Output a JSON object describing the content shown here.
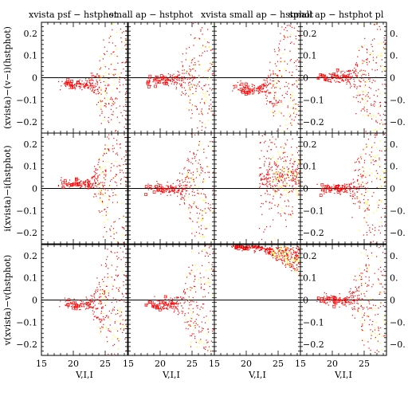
{
  "chart_data": {
    "type": "scatter",
    "layout": "3x4 grid",
    "xlim": [
      15,
      28.5
    ],
    "ylim": [
      -0.25,
      0.25
    ],
    "grid": false,
    "x_ticks": [
      15,
      20,
      25
    ],
    "y_ticks": [
      -0.2,
      -0.1,
      0,
      0.1,
      0.2
    ],
    "y_tick_labels": [
      "−0.2",
      "−0.1",
      "0",
      "0.1",
      "0.2"
    ],
    "right_tick_labels": [
      "−0.2",
      "−0.1",
      "0",
      "0.1",
      "0.2"
    ],
    "right_tick_labels_clipped": [
      "−0.",
      "−0.",
      "0",
      "0.",
      "0."
    ],
    "xlabel": "V,I,I",
    "ylabels": [
      "(xvista)−(v−i)(hstphot)",
      "i(xvista)−i(hstphot)",
      "v(xvista)−v(hstphot)"
    ],
    "column_titles": [
      "xvista psf − hstphot",
      "small ap − hstphot",
      "xvista small ap − hstphot",
      "small ap − hstphot pl"
    ],
    "series": [
      {
        "name": "",
        "marker": "dot",
        "color": "#ff0000"
      },
      {
        "name": "",
        "marker": "dot",
        "color": "#ffff00"
      }
    ],
    "panel_trends": [
      {
        "row": 0,
        "col": 0,
        "center": [
          21.5,
          -0.03
        ],
        "spread_x": 3.0,
        "note": "mean trend approx -0.03 at V~20, widening above V~24"
      },
      {
        "row": 0,
        "col": 1,
        "center": [
          21.5,
          -0.01
        ],
        "spread_x": 3.0
      },
      {
        "row": 0,
        "col": 2,
        "center": [
          21.5,
          -0.05
        ],
        "spread_x": 3.0
      },
      {
        "row": 0,
        "col": 3,
        "center": [
          21.5,
          0.0
        ],
        "spread_x": 3.0
      },
      {
        "row": 1,
        "col": 0,
        "center": [
          21.5,
          0.02
        ],
        "spread_x": 3.0
      },
      {
        "row": 1,
        "col": 1,
        "center": [
          21.5,
          0.0
        ],
        "spread_x": 3.0
      },
      {
        "row": 1,
        "col": 2,
        "center": [
          23.0,
          0.08
        ],
        "spread_x": 2.0
      },
      {
        "row": 1,
        "col": 3,
        "center": [
          21.5,
          0.0
        ],
        "spread_x": 3.0
      },
      {
        "row": 2,
        "col": 0,
        "center": [
          21.5,
          -0.02
        ],
        "spread_x": 3.0
      },
      {
        "row": 2,
        "col": 1,
        "center": [
          21.5,
          -0.02
        ],
        "spread_x": 3.0
      },
      {
        "row": 2,
        "col": 2,
        "center": [
          24.0,
          0.24
        ],
        "spread_x": 2.0
      },
      {
        "row": 2,
        "col": 3,
        "center": [
          21.5,
          0.0
        ],
        "spread_x": 3.0
      }
    ]
  }
}
